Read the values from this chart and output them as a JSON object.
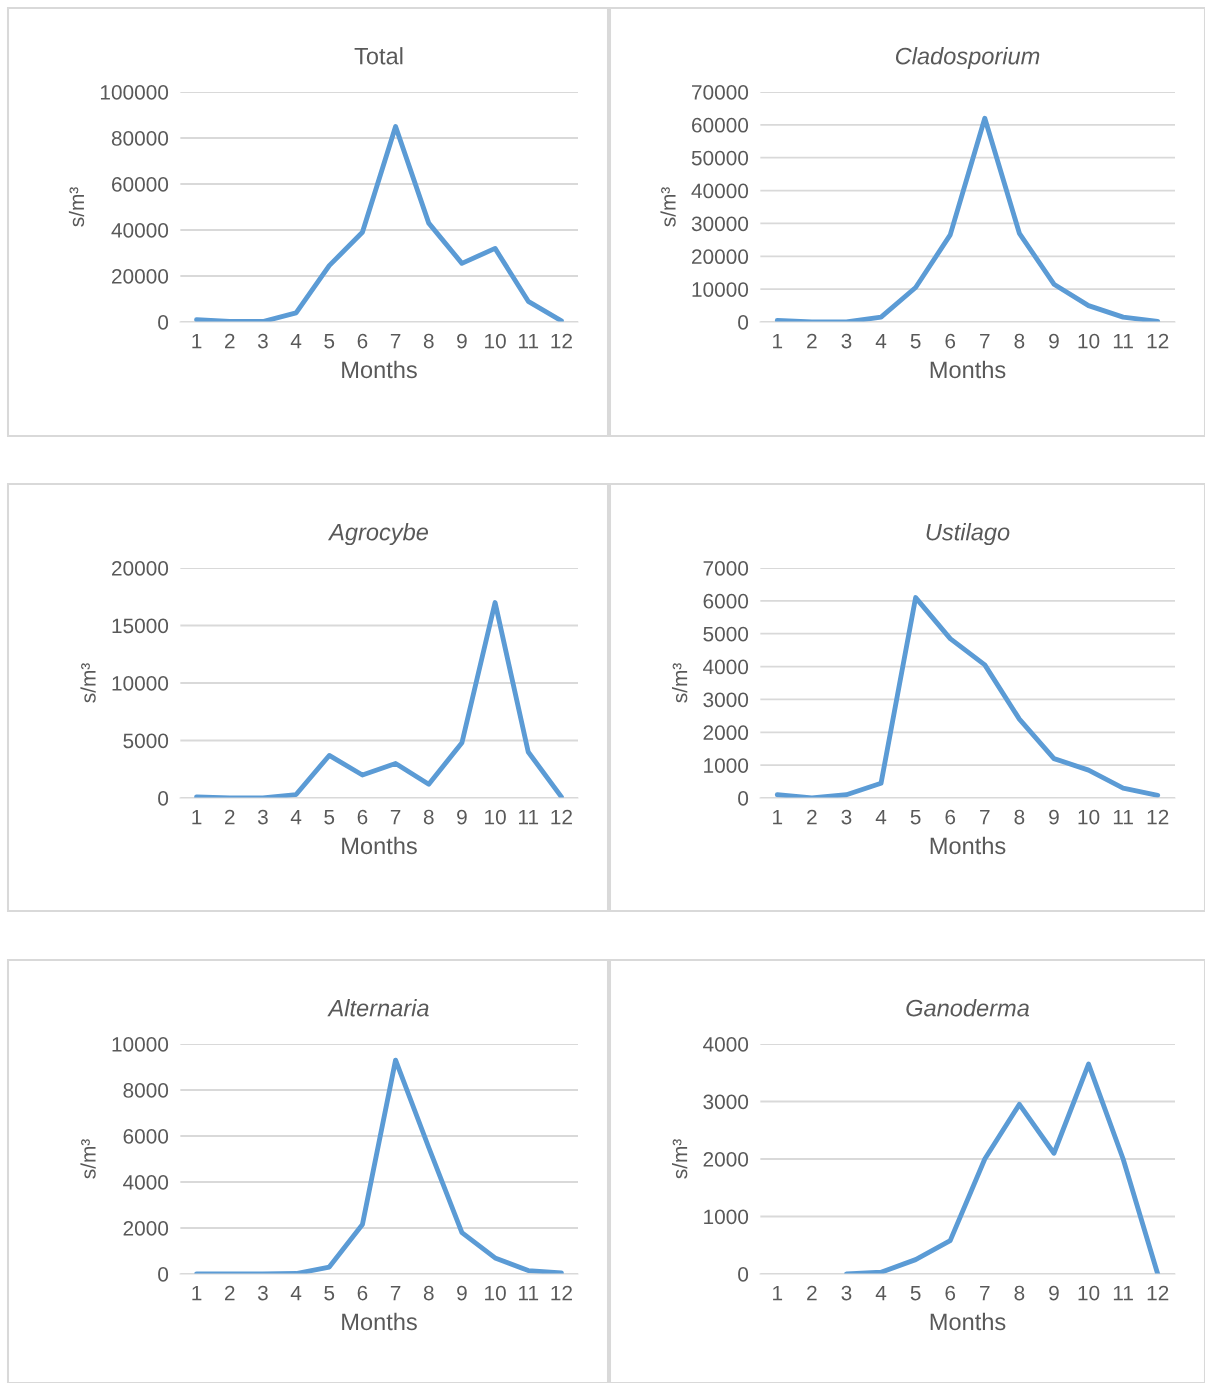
{
  "chart_data": [
    {
      "type": "line",
      "title": "Total",
      "xlabel": "Months",
      "ylabel": "s/m³",
      "categories": [
        "1",
        "2",
        "3",
        "4",
        "5",
        "6",
        "7",
        "8",
        "9",
        "10",
        "11",
        "12"
      ],
      "series": [
        {
          "color": "#5b9bd5",
          "values": [
            1000,
            300,
            200,
            4000,
            24500,
            39000,
            85000,
            43000,
            25500,
            32000,
            9000,
            500
          ]
        }
      ],
      "ylim": [
        0,
        100000
      ],
      "yticks": [
        0,
        20000,
        40000,
        60000,
        80000,
        100000
      ],
      "grid": "y",
      "marker": "none",
      "line_style": "solid"
    },
    {
      "type": "line",
      "title": "Cladosporium",
      "xlabel": "Months",
      "ylabel": "s/m³",
      "categories": [
        "1",
        "2",
        "3",
        "4",
        "5",
        "6",
        "7",
        "8",
        "9",
        "10",
        "11",
        "12"
      ],
      "series": [
        {
          "color": "#5b9bd5",
          "values": [
            500,
            0,
            0,
            1500,
            10500,
            26500,
            62000,
            27000,
            11500,
            5000,
            1500,
            200
          ]
        }
      ],
      "ylim": [
        0,
        70000
      ],
      "yticks": [
        0,
        10000,
        20000,
        30000,
        40000,
        50000,
        60000,
        70000
      ],
      "grid": "y",
      "marker": "none",
      "line_style": "solid"
    },
    {
      "type": "line",
      "title": "Agrocybe",
      "xlabel": "Months",
      "ylabel": "s/m³",
      "categories": [
        "1",
        "2",
        "3",
        "4",
        "5",
        "6",
        "7",
        "8",
        "9",
        "10",
        "11",
        "12"
      ],
      "series": [
        {
          "color": "#5b9bd5",
          "values": [
            100,
            0,
            0,
            300,
            3700,
            2000,
            3000,
            1200,
            4800,
            17000,
            4000,
            100
          ]
        }
      ],
      "ylim": [
        0,
        20000
      ],
      "yticks": [
        0,
        5000,
        10000,
        15000,
        20000
      ],
      "grid": "y",
      "marker": "none",
      "line_style": "solid"
    },
    {
      "type": "line",
      "title": "Ustilago",
      "xlabel": "Months",
      "ylabel": "s/m³",
      "categories": [
        "1",
        "2",
        "3",
        "4",
        "5",
        "6",
        "7",
        "8",
        "9",
        "10",
        "11",
        "12"
      ],
      "series": [
        {
          "color": "#5b9bd5",
          "values": [
            100,
            0,
            100,
            450,
            6100,
            4850,
            4050,
            2400,
            1200,
            850,
            300,
            80
          ]
        }
      ],
      "ylim": [
        0,
        7000
      ],
      "yticks": [
        0,
        1000,
        2000,
        3000,
        4000,
        5000,
        6000,
        7000
      ],
      "grid": "y",
      "marker": "none",
      "line_style": "solid"
    },
    {
      "type": "line",
      "title": "Alternaria",
      "xlabel": "Months",
      "ylabel": "s/m³",
      "categories": [
        "1",
        "2",
        "3",
        "4",
        "5",
        "6",
        "7",
        "8",
        "9",
        "10",
        "11",
        "12"
      ],
      "series": [
        {
          "color": "#5b9bd5",
          "values": [
            0,
            0,
            0,
            20,
            300,
            2150,
            9300,
            5500,
            1800,
            700,
            150,
            50
          ]
        }
      ],
      "ylim": [
        0,
        10000
      ],
      "yticks": [
        0,
        2000,
        4000,
        6000,
        8000,
        10000
      ],
      "grid": "y",
      "marker": "none",
      "line_style": "solid"
    },
    {
      "type": "line",
      "title": "Ganoderma",
      "xlabel": "Months",
      "ylabel": "s/m³",
      "categories": [
        "1",
        "2",
        "3",
        "4",
        "5",
        "6",
        "7",
        "8",
        "9",
        "10",
        "11",
        "12"
      ],
      "series": [
        {
          "color": "#5b9bd5",
          "values": [
            null,
            null,
            0,
            30,
            250,
            580,
            2000,
            2950,
            2100,
            3650,
            2000,
            0
          ]
        }
      ],
      "ylim": [
        0,
        4000
      ],
      "yticks": [
        0,
        1000,
        2000,
        3000,
        4000
      ],
      "grid": "y",
      "marker": "none",
      "line_style": "solid"
    }
  ]
}
